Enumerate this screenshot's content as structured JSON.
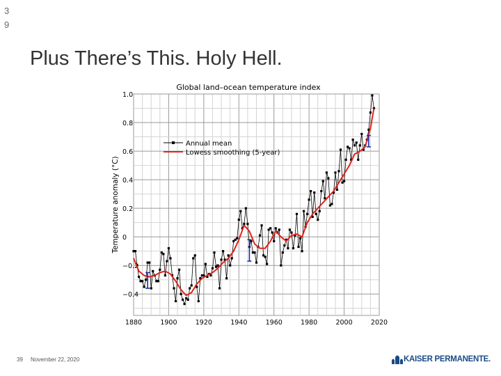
{
  "slide": {
    "top_number": "3\n9",
    "title": "Plus There’s This. Holy Hell.",
    "footer_number": "39",
    "footer_date": "November 22, 2020",
    "logo_text": "KAISER PERMANENTE.",
    "logo_color": "#1b4b88"
  },
  "chart_data": {
    "type": "line",
    "title": "Global land–ocean temperature index",
    "xlabel": "",
    "ylabel": "Temperature anomaly (°C)",
    "xlim": [
      1880,
      2020
    ],
    "ylim": [
      -0.5,
      1.0
    ],
    "x_ticks": [
      1880,
      1900,
      1920,
      1940,
      1960,
      1980,
      2000,
      2020
    ],
    "y_ticks": [
      1.0,
      0.8,
      0.6,
      0.4,
      0.2,
      0,
      -0.2,
      -0.4
    ],
    "y_tick_labels": [
      "1.0",
      "0.8",
      "0.6",
      "0.4",
      "0.2",
      "0",
      "−0.2",
      "−0.4"
    ],
    "grid": true,
    "legend": [
      {
        "name": "Annual mean",
        "color": "#000000",
        "style": "line-marker"
      },
      {
        "name": "Lowess smoothing (5-year)",
        "color": "#e0211b",
        "style": "line"
      }
    ],
    "series": [
      {
        "name": "Annual mean",
        "color": "#000000",
        "x": [
          1880,
          1881,
          1882,
          1883,
          1884,
          1885,
          1886,
          1887,
          1888,
          1889,
          1890,
          1891,
          1892,
          1893,
          1894,
          1895,
          1896,
          1897,
          1898,
          1899,
          1900,
          1901,
          1902,
          1903,
          1904,
          1905,
          1906,
          1907,
          1908,
          1909,
          1910,
          1911,
          1912,
          1913,
          1914,
          1915,
          1916,
          1917,
          1918,
          1919,
          1920,
          1921,
          1922,
          1923,
          1924,
          1925,
          1926,
          1927,
          1928,
          1929,
          1930,
          1931,
          1932,
          1933,
          1934,
          1935,
          1936,
          1937,
          1938,
          1939,
          1940,
          1941,
          1942,
          1943,
          1944,
          1945,
          1946,
          1947,
          1948,
          1949,
          1950,
          1951,
          1952,
          1953,
          1954,
          1955,
          1956,
          1957,
          1958,
          1959,
          1960,
          1961,
          1962,
          1963,
          1964,
          1965,
          1966,
          1967,
          1968,
          1969,
          1970,
          1971,
          1972,
          1973,
          1974,
          1975,
          1976,
          1977,
          1978,
          1979,
          1980,
          1981,
          1982,
          1983,
          1984,
          1985,
          1986,
          1987,
          1988,
          1989,
          1990,
          1991,
          1992,
          1993,
          1994,
          1995,
          1996,
          1997,
          1998,
          1999,
          2000,
          2001,
          2002,
          2003,
          2004,
          2005,
          2006,
          2007,
          2008,
          2009,
          2010,
          2011,
          2012,
          2013,
          2014,
          2015,
          2016,
          2017
        ],
        "values": [
          -0.1,
          -0.1,
          -0.2,
          -0.28,
          -0.31,
          -0.31,
          -0.35,
          -0.3,
          -0.18,
          -0.18,
          -0.36,
          -0.24,
          -0.27,
          -0.31,
          -0.31,
          -0.23,
          -0.11,
          -0.12,
          -0.27,
          -0.17,
          -0.08,
          -0.15,
          -0.27,
          -0.36,
          -0.45,
          -0.29,
          -0.23,
          -0.4,
          -0.44,
          -0.47,
          -0.43,
          -0.44,
          -0.36,
          -0.34,
          -0.15,
          -0.13,
          -0.35,
          -0.45,
          -0.29,
          -0.27,
          -0.27,
          -0.19,
          -0.28,
          -0.26,
          -0.27,
          -0.22,
          -0.11,
          -0.21,
          -0.2,
          -0.36,
          -0.16,
          -0.1,
          -0.16,
          -0.29,
          -0.13,
          -0.2,
          -0.15,
          -0.03,
          -0.02,
          -0.01,
          0.12,
          0.18,
          0.06,
          0.09,
          0.2,
          0.09,
          -0.07,
          -0.03,
          -0.11,
          -0.11,
          -0.18,
          -0.07,
          0.01,
          0.08,
          -0.13,
          -0.14,
          -0.19,
          0.05,
          0.06,
          0.03,
          -0.03,
          0.06,
          0.03,
          0.05,
          -0.2,
          -0.11,
          -0.06,
          -0.02,
          -0.08,
          0.05,
          0.03,
          -0.08,
          0.01,
          0.16,
          -0.07,
          -0.01,
          -0.1,
          0.18,
          0.07,
          0.16,
          0.26,
          0.32,
          0.14,
          0.31,
          0.16,
          0.12,
          0.18,
          0.32,
          0.39,
          0.27,
          0.45,
          0.41,
          0.22,
          0.23,
          0.31,
          0.45,
          0.33,
          0.46,
          0.61,
          0.38,
          0.39,
          0.54,
          0.63,
          0.62,
          0.54,
          0.68,
          0.64,
          0.66,
          0.54,
          0.64,
          0.72,
          0.61,
          0.64,
          0.68,
          0.75,
          0.87,
          0.99,
          0.9
        ]
      },
      {
        "name": "Lowess smoothing (5-year)",
        "color": "#e0211b",
        "x": [
          1880,
          1883,
          1886,
          1889,
          1892,
          1895,
          1898,
          1901,
          1904,
          1907,
          1910,
          1913,
          1916,
          1919,
          1922,
          1925,
          1928,
          1931,
          1934,
          1937,
          1940,
          1943,
          1946,
          1949,
          1952,
          1955,
          1958,
          1961,
          1964,
          1967,
          1970,
          1973,
          1976,
          1979,
          1982,
          1985,
          1988,
          1991,
          1994,
          1997,
          2000,
          2003,
          2006,
          2009,
          2012,
          2015,
          2017
        ],
        "values": [
          -0.15,
          -0.24,
          -0.27,
          -0.28,
          -0.27,
          -0.25,
          -0.24,
          -0.26,
          -0.31,
          -0.37,
          -0.41,
          -0.39,
          -0.33,
          -0.29,
          -0.27,
          -0.25,
          -0.22,
          -0.18,
          -0.15,
          -0.1,
          -0.02,
          0.08,
          0.04,
          -0.05,
          -0.08,
          -0.08,
          -0.03,
          0.04,
          0.0,
          -0.03,
          0.01,
          0.02,
          0.0,
          0.1,
          0.16,
          0.2,
          0.24,
          0.28,
          0.32,
          0.38,
          0.44,
          0.5,
          0.58,
          0.6,
          0.63,
          0.76,
          0.9
        ]
      }
    ],
    "uncertainty_bars": [
      {
        "x": 1888,
        "low": -0.36,
        "high": -0.25,
        "color": "#1a2fb0"
      },
      {
        "x": 1946,
        "low": -0.17,
        "high": -0.02,
        "color": "#1a2fb0"
      },
      {
        "x": 2014,
        "low": 0.63,
        "high": 0.71,
        "color": "#1a2fb0"
      }
    ]
  }
}
